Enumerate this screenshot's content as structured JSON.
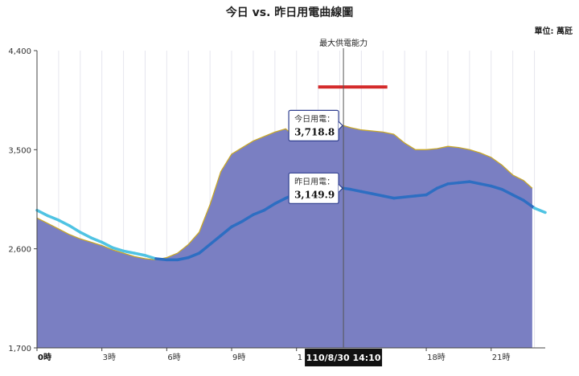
{
  "chart_data": {
    "type": "area",
    "title": "今日 vs. 昨日用電曲線圖",
    "unit_label": "單位: 萬瓩",
    "xlabel": "",
    "ylabel": "",
    "ylim": [
      1700,
      4400
    ],
    "xlim": [
      0,
      23.5
    ],
    "y_ticks": [
      {
        "value": 1700,
        "label": "1,700"
      },
      {
        "value": 2600,
        "label": "2,600"
      },
      {
        "value": 3500,
        "label": "3,500"
      },
      {
        "value": 4400,
        "label": "4,400"
      }
    ],
    "x_ticks": [
      {
        "value": 0,
        "label": "0時",
        "bold": true
      },
      {
        "value": 3,
        "label": "3時"
      },
      {
        "value": 6,
        "label": "6時"
      },
      {
        "value": 9,
        "label": "9時"
      },
      {
        "value": 12,
        "label": "1"
      },
      {
        "value": 18,
        "label": "18時"
      },
      {
        "value": 21,
        "label": "21時"
      }
    ],
    "grid": "vertical",
    "legend": "none",
    "series": [
      {
        "key": "today",
        "style": "area",
        "fill": "#7a7fc2",
        "stroke": "#c8a82a",
        "points": [
          [
            0,
            2880
          ],
          [
            0.5,
            2830
          ],
          [
            1,
            2780
          ],
          [
            1.5,
            2730
          ],
          [
            2,
            2690
          ],
          [
            2.5,
            2660
          ],
          [
            3,
            2630
          ],
          [
            3.5,
            2590
          ],
          [
            4,
            2560
          ],
          [
            4.5,
            2530
          ],
          [
            5,
            2510
          ],
          [
            5.5,
            2500
          ],
          [
            6,
            2520
          ],
          [
            6.5,
            2560
          ],
          [
            7,
            2640
          ],
          [
            7.5,
            2750
          ],
          [
            8,
            3000
          ],
          [
            8.5,
            3300
          ],
          [
            9,
            3460
          ],
          [
            9.5,
            3520
          ],
          [
            10,
            3580
          ],
          [
            10.5,
            3620
          ],
          [
            11,
            3660
          ],
          [
            11.5,
            3690
          ],
          [
            12,
            3600
          ],
          [
            12.5,
            3580
          ],
          [
            13,
            3640
          ],
          [
            13.5,
            3690
          ],
          [
            14,
            3710
          ],
          [
            14.17,
            3718.8
          ],
          [
            14.5,
            3700
          ],
          [
            15,
            3680
          ],
          [
            15.5,
            3670
          ],
          [
            16,
            3660
          ],
          [
            16.5,
            3640
          ],
          [
            17,
            3560
          ],
          [
            17.5,
            3500
          ],
          [
            18,
            3500
          ],
          [
            18.5,
            3510
          ],
          [
            19,
            3530
          ],
          [
            19.5,
            3520
          ],
          [
            20,
            3500
          ],
          [
            20.5,
            3470
          ],
          [
            21,
            3430
          ],
          [
            21.5,
            3360
          ],
          [
            22,
            3270
          ],
          [
            22.5,
            3220
          ],
          [
            22.9,
            3150
          ]
        ]
      },
      {
        "key": "yesterday",
        "style": "line",
        "stroke": "#2d6ec2",
        "stroke_light": "#4fc3e3",
        "points": [
          [
            0,
            2950
          ],
          [
            0.5,
            2900
          ],
          [
            1,
            2860
          ],
          [
            1.5,
            2810
          ],
          [
            2,
            2750
          ],
          [
            2.5,
            2700
          ],
          [
            3,
            2660
          ],
          [
            3.5,
            2610
          ],
          [
            4,
            2580
          ],
          [
            4.5,
            2560
          ],
          [
            5,
            2540
          ],
          [
            5.5,
            2510
          ],
          [
            6,
            2500
          ],
          [
            6.5,
            2500
          ],
          [
            7,
            2520
          ],
          [
            7.5,
            2560
          ],
          [
            8,
            2640
          ],
          [
            8.5,
            2720
          ],
          [
            9,
            2800
          ],
          [
            9.5,
            2850
          ],
          [
            10,
            2910
          ],
          [
            10.5,
            2950
          ],
          [
            11,
            3010
          ],
          [
            11.5,
            3060
          ],
          [
            12,
            3100
          ],
          [
            12.5,
            3130
          ],
          [
            13,
            3150
          ],
          [
            13.5,
            3160
          ],
          [
            14,
            3155
          ],
          [
            14.17,
            3149.9
          ],
          [
            14.5,
            3140
          ],
          [
            15,
            3120
          ],
          [
            15.5,
            3100
          ],
          [
            16,
            3080
          ],
          [
            16.5,
            3060
          ],
          [
            17,
            3070
          ],
          [
            17.5,
            3080
          ],
          [
            18,
            3090
          ],
          [
            18.5,
            3150
          ],
          [
            19,
            3190
          ],
          [
            19.5,
            3200
          ],
          [
            20,
            3210
          ],
          [
            20.5,
            3190
          ],
          [
            21,
            3170
          ],
          [
            21.5,
            3140
          ],
          [
            22,
            3090
          ],
          [
            22.5,
            3040
          ],
          [
            23,
            2970
          ],
          [
            23.5,
            2930
          ]
        ]
      }
    ],
    "reference": {
      "label": "最大供電能力",
      "value": 4070,
      "x_start": 13,
      "x_end": 16.2,
      "color": "#d42a2a"
    },
    "cursor": {
      "x": 14.17,
      "label": "110/8/30 14:10",
      "tooltips": [
        {
          "key": "today",
          "label": "今日用電：",
          "value": "3,718.8",
          "y": 3718.8
        },
        {
          "key": "yesterday",
          "label": "昨日用電：",
          "value": "3,149.9",
          "y": 3149.9
        }
      ]
    }
  }
}
